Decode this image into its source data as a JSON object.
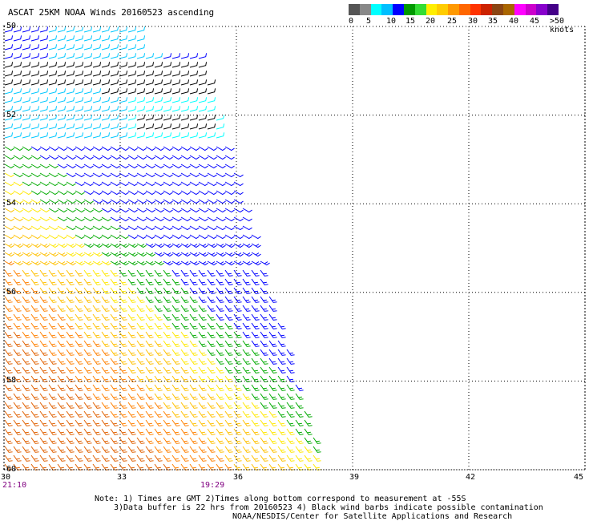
{
  "header": {
    "title": "ASCAT 25KM NOAA Winds 20160523 ascending"
  },
  "legend": {
    "labels": [
      "0",
      "5",
      "10",
      "15",
      "20",
      "25",
      "30",
      "35",
      "40",
      "45",
      ">50 knots"
    ],
    "colors": [
      "#555555",
      "#888888",
      "#00ffff",
      "#00bfff",
      "#0000ff",
      "#009900",
      "#33dd33",
      "#ffee00",
      "#ffcc00",
      "#ff9900",
      "#ff6600",
      "#ff3300",
      "#cc2200",
      "#8b4513",
      "#aa6600",
      "#ff00ff",
      "#cc00cc",
      "#8800cc",
      "#440088"
    ]
  },
  "map": {
    "lat_labels": [
      "-50",
      "-52",
      "-54",
      "-56",
      "-58",
      "-60"
    ],
    "lon_labels": [
      "30",
      "33",
      "36",
      "39",
      "42",
      "45"
    ],
    "lat_range": [
      -60,
      -50
    ],
    "lon_range": [
      30,
      45
    ],
    "times": [
      "21:10",
      "19:29"
    ],
    "grid": "dotted",
    "wind_speed_colors": {
      "contaminated": "#000000",
      "lt5": "#00ffff",
      "lt10": "#00c8ff",
      "lt15": "#0000ff",
      "lt20": "#00aa00",
      "lt25": "#ffe800",
      "lt30": "#ffc000",
      "lt35": "#ff8000",
      "lt40": "#e06000"
    }
  },
  "notes": {
    "line1": "Note: 1) Times are GMT 2)Times along bottom correspond to measurement at -55S",
    "line2": "3)Data buffer is 22 hrs from 20160523 4) Black wind barbs indicate possible contamination",
    "line3": "NOAA/NESDIS/Center for Satellite Applications and Research"
  }
}
